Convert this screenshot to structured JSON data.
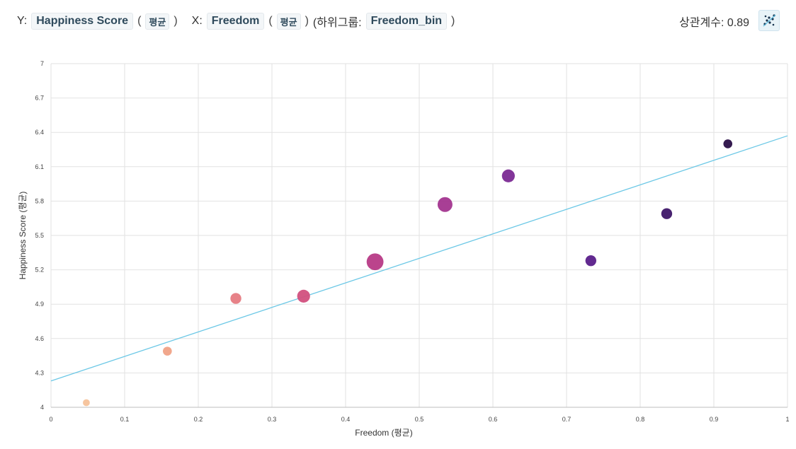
{
  "toolbar": {
    "y_prefix": "Y:",
    "y_field": "Happiness Score",
    "y_agg": "평균",
    "x_prefix": "X:",
    "x_field": "Freedom",
    "x_agg": "평균",
    "subgroup_label": "(하위그룹:",
    "subgroup_field": "Freedom_bin",
    "open_paren": "(",
    "close_paren": ")",
    "corr_label": "상관계수: 0.89",
    "scatter_icon": "scatter-plot-icon"
  },
  "chart_data": {
    "type": "scatter",
    "xlabel": "Freedom (평균)",
    "ylabel": "Happiness Score (평균)",
    "xlim": [
      0,
      1
    ],
    "ylim": [
      4,
      7
    ],
    "xticks": [
      0,
      0.1,
      0.2,
      0.3,
      0.4,
      0.5,
      0.6,
      0.7,
      0.8,
      0.9,
      1
    ],
    "yticks": [
      4,
      4.3,
      4.6,
      4.9,
      5.2,
      5.5,
      5.8,
      6.1,
      6.4,
      6.7,
      7
    ],
    "xtick_labels": [
      "0",
      "0.1",
      "0.2",
      "0.3",
      "0.4",
      "0.5",
      "0.6",
      "0.7",
      "0.8",
      "0.9",
      "1"
    ],
    "ytick_labels": [
      "4",
      "4.3",
      "4.6",
      "4.9",
      "5.2",
      "5.5",
      "5.8",
      "6.1",
      "6.4",
      "6.7",
      "7"
    ],
    "grid": true,
    "points": [
      {
        "x": 0.048,
        "y": 4.04,
        "size": 1,
        "color": "#f6c29a"
      },
      {
        "x": 0.158,
        "y": 4.49,
        "size": 2,
        "color": "#f0a286"
      },
      {
        "x": 0.251,
        "y": 4.95,
        "size": 3,
        "color": "#e67b82"
      },
      {
        "x": 0.343,
        "y": 4.97,
        "size": 4,
        "color": "#d2507e"
      },
      {
        "x": 0.44,
        "y": 5.27,
        "size": 6,
        "color": "#b73a86"
      },
      {
        "x": 0.535,
        "y": 5.77,
        "size": 5,
        "color": "#a3358f"
      },
      {
        "x": 0.621,
        "y": 6.02,
        "size": 4,
        "color": "#7b2a94"
      },
      {
        "x": 0.733,
        "y": 5.28,
        "size": 3,
        "color": "#5a1f8a"
      },
      {
        "x": 0.836,
        "y": 5.69,
        "size": 3,
        "color": "#3e1668"
      },
      {
        "x": 0.919,
        "y": 6.3,
        "size": 2,
        "color": "#2a0f47"
      }
    ],
    "trendline": {
      "x": [
        0,
        1
      ],
      "y": [
        4.23,
        6.37
      ],
      "color": "#6cc8e6"
    }
  }
}
